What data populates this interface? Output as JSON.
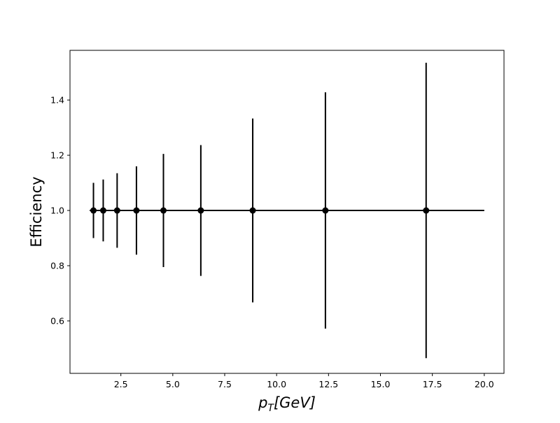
{
  "chart_data": {
    "type": "scatter",
    "title": "",
    "xlabel": {
      "base": "p",
      "sub": "T",
      "rest": "[GeV]"
    },
    "ylabel": "Efficiency",
    "xlim": [
      0.05,
      20.95
    ],
    "ylim": [
      0.41,
      1.58
    ],
    "x_ticks": [
      2.5,
      5.0,
      7.5,
      10.0,
      12.5,
      15.0,
      17.5,
      20.0
    ],
    "x_tick_labels": [
      "2.5",
      "5.0",
      "7.5",
      "10.0",
      "12.5",
      "15.0",
      "17.5",
      "20.0"
    ],
    "y_ticks": [
      0.6,
      0.8,
      1.0,
      1.2,
      1.4
    ],
    "y_tick_labels": [
      "0.6",
      "0.8",
      "1.0",
      "1.2",
      "1.4"
    ],
    "grid": false,
    "series": [
      {
        "color": "#000000",
        "x": [
          1.18,
          1.65,
          2.32,
          3.25,
          4.55,
          6.35,
          8.85,
          12.35,
          17.2
        ],
        "y": [
          1.0,
          1.0,
          1.0,
          1.0,
          1.0,
          1.0,
          1.0,
          1.0,
          1.0
        ],
        "yerr": [
          0.1,
          0.112,
          0.135,
          0.16,
          0.205,
          0.237,
          0.333,
          0.428,
          0.535
        ],
        "xerr_span": [
          1.0,
          20.0
        ]
      }
    ]
  }
}
